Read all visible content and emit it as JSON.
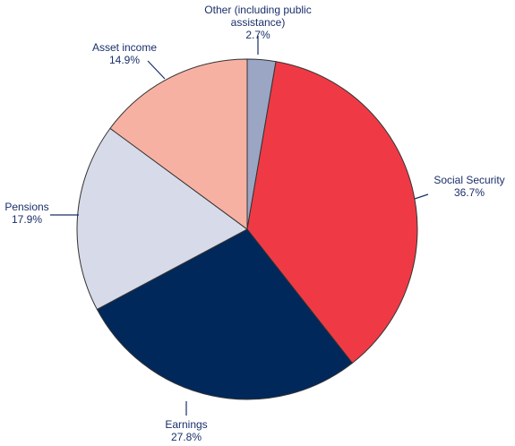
{
  "chart_data": {
    "type": "pie",
    "slices": [
      {
        "label_lines": [
          "Other (including public",
          "assistance)"
        ],
        "value_text": "2.7%",
        "value": 2.7,
        "color": "#9ba5c4"
      },
      {
        "label_lines": [
          "Social Security"
        ],
        "value_text": "36.7%",
        "value": 36.7,
        "color": "#ef3a45"
      },
      {
        "label_lines": [
          "Earnings"
        ],
        "value_text": "27.8%",
        "value": 27.8,
        "color": "#00285a"
      },
      {
        "label_lines": [
          "Pensions"
        ],
        "value_text": "17.9%",
        "value": 17.9,
        "color": "#d7dae8"
      },
      {
        "label_lines": [
          "Asset income"
        ],
        "value_text": "14.9%",
        "value": 14.9,
        "color": "#f7b1a3"
      }
    ],
    "start_angle": "12 o'clock",
    "direction": "clockwise",
    "legend": "none (slice labels with leader lines)"
  }
}
